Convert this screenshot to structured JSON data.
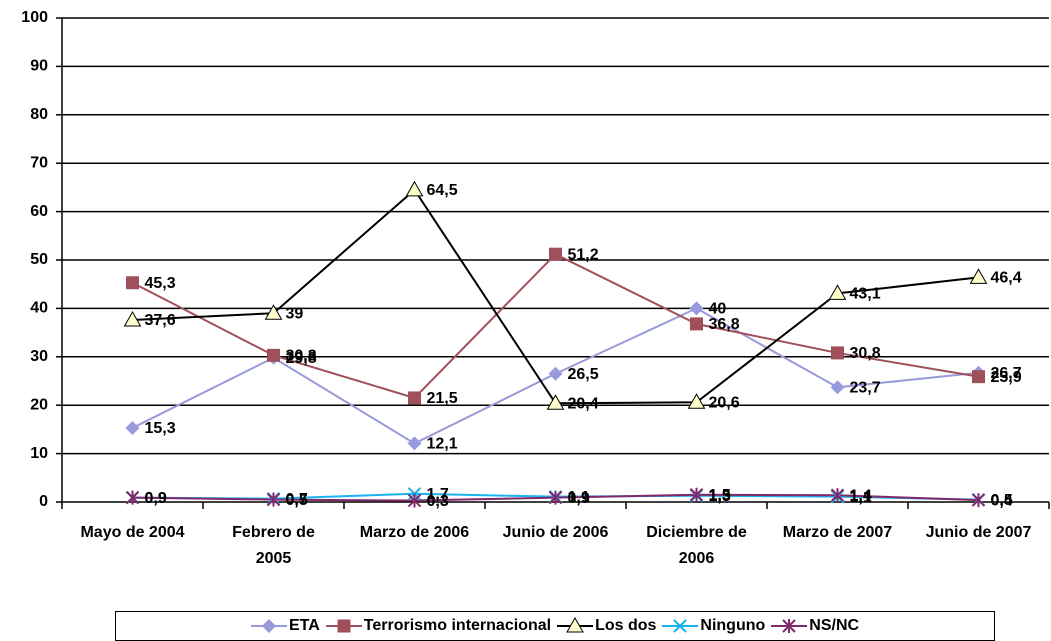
{
  "chart_data": {
    "type": "line",
    "categories": [
      "Mayo de 2004",
      "Febrero de 2005",
      "Marzo de 2006",
      "Junio de 2006",
      "Diciembre de 2006",
      "Marzo de 2007",
      "Junio de 2007"
    ],
    "series": [
      {
        "name": "ETA",
        "color": "#9999dd",
        "marker": "diamond",
        "marker_color": "#9999dd",
        "values": [
          15.3,
          29.8,
          12.1,
          26.5,
          40,
          23.7,
          26.7
        ],
        "value_labels": [
          "15,3",
          "29,8",
          "12,1",
          "26,5",
          "40",
          "23,7",
          "26,7"
        ]
      },
      {
        "name": "Terrorismo internacional",
        "color": "#a0505a",
        "marker": "square",
        "marker_color": "#a0505a",
        "values": [
          45.3,
          30.3,
          21.5,
          51.2,
          36.8,
          30.8,
          25.9
        ],
        "value_labels": [
          "45,3",
          "30,3",
          "21,5",
          "51,2",
          "36,8",
          "30,8",
          "25,9"
        ]
      },
      {
        "name": "Los dos",
        "color": "#000000",
        "marker": "triangle",
        "marker_color": "#ffffcc",
        "values": [
          37.6,
          39,
          64.5,
          20.4,
          20.6,
          43.1,
          46.4
        ],
        "value_labels": [
          "37,6",
          "39",
          "64,5",
          "20,4",
          "20,6",
          "43,1",
          "46,4"
        ]
      },
      {
        "name": "Ninguno",
        "color": "#1ab2f0",
        "marker": "x",
        "marker_color": "#1ab2f0",
        "values": [
          0.9,
          0.7,
          1.7,
          1.1,
          1.3,
          1.1,
          0.5
        ],
        "value_labels": [
          "0,9",
          "0,7",
          "1,7",
          "1,1",
          "1,3",
          "1,1",
          "0,5"
        ]
      },
      {
        "name": "NS/NC",
        "color": "#80286a",
        "marker": "asterisk",
        "marker_color": "#80286a",
        "values": [
          0.9,
          0.5,
          0.3,
          0.9,
          1.5,
          1.4,
          0.4
        ],
        "value_labels": [
          "0,9",
          "0,5",
          "0,3",
          "0,9",
          "1,5",
          "1,4",
          "0,4"
        ]
      }
    ],
    "ylim": [
      0,
      100
    ],
    "yticks": [
      0,
      10,
      20,
      30,
      40,
      50,
      60,
      70,
      80,
      90,
      100
    ],
    "grid": true,
    "legend": "bottom"
  }
}
